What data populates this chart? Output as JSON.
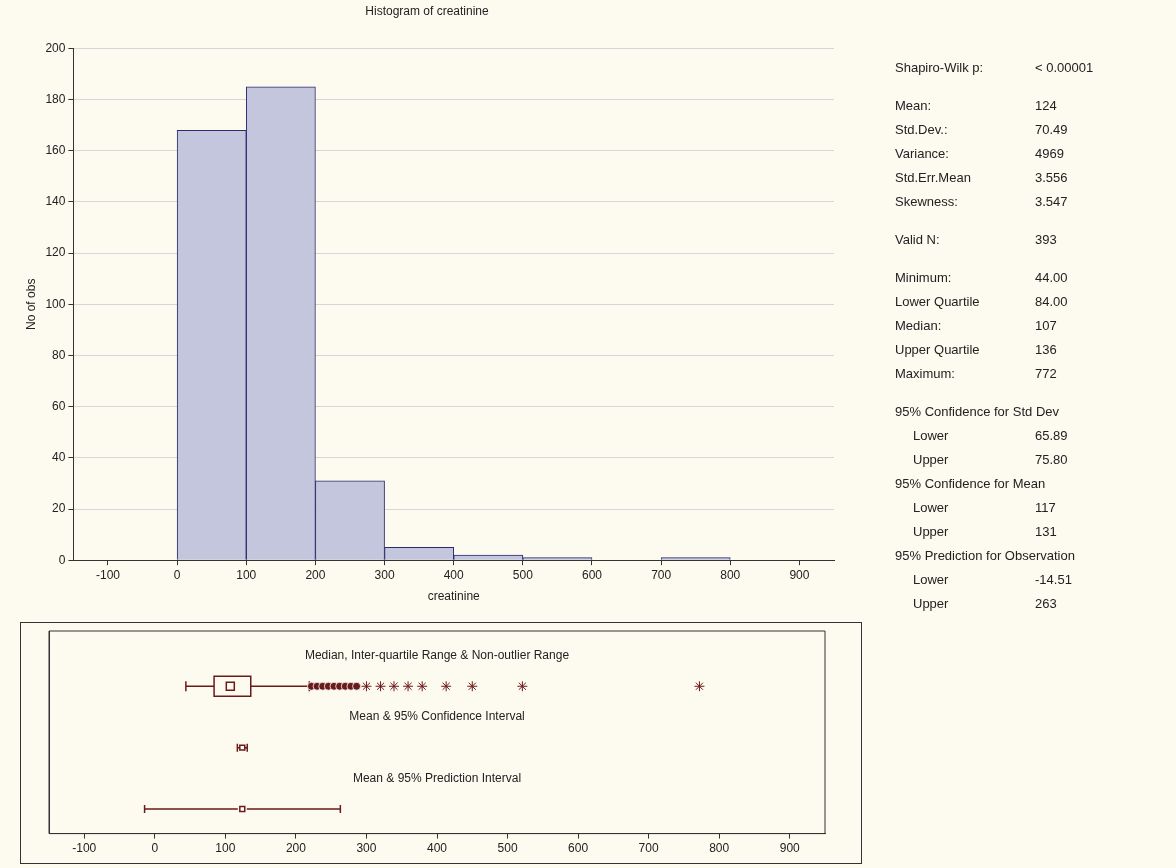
{
  "chart_data": [
    {
      "type": "histogram",
      "title": "Histogram of creatinine",
      "xlabel": "creatinine",
      "ylabel": "No of obs",
      "bins": [
        0,
        100,
        200,
        300,
        400,
        500,
        600,
        700,
        800
      ],
      "values": [
        168,
        185,
        31,
        5,
        2,
        1,
        0,
        1
      ],
      "color": "#c3c6dc",
      "xlim": [
        -150,
        950
      ],
      "xticks": [
        -100,
        0,
        100,
        200,
        300,
        400,
        500,
        600,
        700,
        800,
        900
      ],
      "ylim": [
        0,
        200
      ],
      "yticks": [
        0,
        20,
        40,
        60,
        80,
        100,
        120,
        140,
        160,
        180,
        200
      ],
      "grid": "y",
      "legend": false
    },
    {
      "type": "box",
      "orientation": "horizontal",
      "categories": [
        "Median, Inter-quartile Range & Non-outlier Range",
        "Mean & 95% Confidence Interval",
        "Mean & 95% Prediction Interval"
      ],
      "xlim": [
        -150,
        950
      ],
      "xticks": [
        -100,
        0,
        100,
        200,
        300,
        400,
        500,
        600,
        700,
        800,
        900
      ],
      "grid": false,
      "legend": false,
      "series": [
        {
          "type": "box",
          "color": "#6b1a1a",
          "boxes": [
            {
              "low": 44,
              "q1": 84,
              "median": 107,
              "q3": 136,
              "high": 219,
              "outliers": [
                222,
                230,
                238,
                246,
                254,
                262,
                270,
                278,
                286,
                300,
                320,
                339,
                359,
                379,
                413,
                450,
                521,
                772
              ]
            },
            null,
            null
          ]
        },
        {
          "type": "scatter",
          "color": "#6b1a1a",
          "marker": "square",
          "values": [
            null,
            124,
            124
          ],
          "errors": [
            null,
            [
              117,
              131
            ],
            [
              -14.51,
              263
            ]
          ]
        }
      ]
    },
    {
      "type": "other",
      "annotations": [
        "Shapiro-Wilk p:",
        "< 0.00001",
        "Mean:",
        "124",
        "Std.Dev.:",
        "70.49",
        "Variance:",
        "4969",
        "Std.Err.Mean",
        "3.556",
        "Skewness:",
        "3.547",
        "Valid N:",
        "393",
        "Minimum:",
        "44.00",
        "Lower Quartile",
        "84.00",
        "Median:",
        "107",
        "Upper Quartile",
        "136",
        "Maximum:",
        "772",
        "95% Confidence for Std Dev",
        "Lower",
        "65.89",
        "Upper",
        "75.80",
        "95% Confidence for Mean",
        "Lower",
        "117",
        "Upper",
        "131",
        "95% Prediction for Observation",
        "Lower",
        "-14.51",
        "Upper",
        "263"
      ]
    }
  ]
}
